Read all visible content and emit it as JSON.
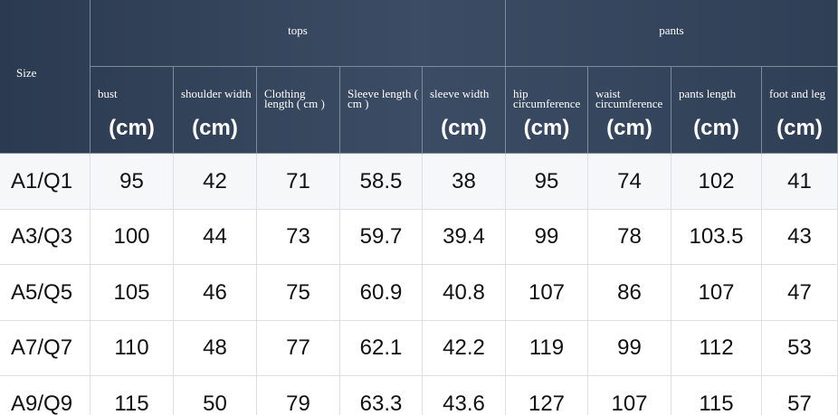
{
  "header": {
    "size": "Size",
    "groups": [
      "tops",
      "pants"
    ],
    "columns": [
      {
        "label": "bust",
        "unit": "(cm)"
      },
      {
        "label": "shoulder width",
        "unit": "(cm)"
      },
      {
        "label": "Clothing length ( cm )"
      },
      {
        "label": "Sleeve length ( cm )"
      },
      {
        "label": "sleeve width",
        "unit": "(cm)"
      },
      {
        "label": "hip circumference",
        "unit": "(cm)"
      },
      {
        "label": "waist circumference",
        "unit": "(cm)"
      },
      {
        "label": "pants length",
        "unit": "(cm)"
      },
      {
        "label": "foot and leg",
        "unit": "(cm)"
      }
    ]
  },
  "rows": [
    [
      "A1/Q1",
      95,
      42,
      71,
      58.5,
      38,
      95,
      74,
      102,
      41
    ],
    [
      "A3/Q3",
      100,
      44,
      73,
      59.7,
      39.4,
      99,
      78,
      103.5,
      43
    ],
    [
      "A5/Q5",
      105,
      46,
      75,
      60.9,
      40.8,
      107,
      86,
      107,
      47
    ],
    [
      "A7/Q7",
      110,
      48,
      77,
      62.1,
      42.2,
      119,
      99,
      112,
      53
    ],
    [
      "A9/Q9",
      115,
      50,
      79,
      63.3,
      43.6,
      127,
      107,
      115,
      57
    ]
  ]
}
